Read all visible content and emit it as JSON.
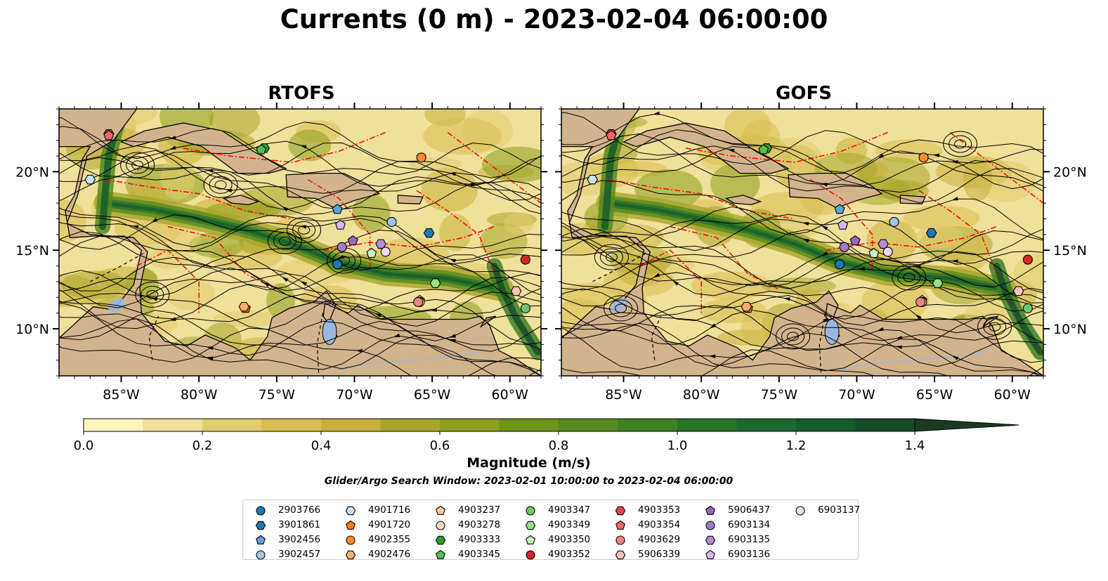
{
  "title": "Currents (0 m) - 2023-02-04 06:00:00",
  "panels": [
    {
      "name": "RTOFS"
    },
    {
      "name": "GOFS"
    }
  ],
  "colors": {
    "land": "#d2b48c",
    "lakes": "#9ab8dd",
    "eez_lines": "#ff0000",
    "streamlines": "#000000"
  },
  "chart_data": {
    "type": "heatmap",
    "variable": "surface current magnitude with streamlines",
    "depth_m": 0,
    "longitude_axis": {
      "range": [
        -89,
        -58
      ],
      "ticks": [
        -85,
        -80,
        -75,
        -70,
        -65,
        -60
      ],
      "tick_labels": [
        "85°W",
        "80°W",
        "75°W",
        "70°W",
        "65°W",
        "60°W"
      ]
    },
    "latitude_axis": {
      "range": [
        7,
        24
      ],
      "ticks": [
        10,
        15,
        20
      ],
      "tick_labels": [
        "10°N",
        "15°N",
        "20°N"
      ]
    },
    "colorbar": {
      "label": "Magnitude (m/s)",
      "levels": [
        0.0,
        0.1,
        0.2,
        0.3,
        0.4,
        0.5,
        0.6,
        0.7,
        0.8,
        0.9,
        1.0,
        1.1,
        1.2,
        1.3,
        1.4,
        1.5
      ],
      "colors": [
        "#fdf6bf",
        "#efe09a",
        "#e2cc70",
        "#d8bd50",
        "#c8b03a",
        "#a8a52a",
        "#8d9e1e",
        "#719418",
        "#588a1f",
        "#3e7f24",
        "#2a7428",
        "#1b6a2e",
        "#155d2c",
        "#174c2a",
        "#1a3b22"
      ],
      "tick_labels": [
        "0.0",
        "0.2",
        "0.4",
        "0.6",
        "0.8",
        "1.0",
        "1.2",
        "1.4"
      ],
      "extend": "max"
    },
    "search_window": "Glider/Argo Search Window: 2023-02-01 10:00:00 to 2023-02-04 06:00:00",
    "floats": [
      {
        "id": "2903766",
        "marker": "circle",
        "color": "#1f77b4",
        "lon": -71.1,
        "lat": 14.1
      },
      {
        "id": "3901861",
        "marker": "hexagon",
        "color": "#1f77b4",
        "lon": -65.2,
        "lat": 16.1
      },
      {
        "id": "3902456",
        "marker": "pentagon",
        "color": "#5fa2dd",
        "lon": -71.1,
        "lat": 17.6
      },
      {
        "id": "3902457",
        "marker": "circle",
        "color": "#9ec6ea",
        "lon": -67.6,
        "lat": 16.8
      },
      {
        "id": "4901716",
        "marker": "hexagon",
        "color": "#c6e2f5",
        "lon": -87.0,
        "lat": 19.5
      },
      {
        "id": "4901720",
        "marker": "pentagon",
        "color": "#ff7f0e",
        "lon": -77.0,
        "lat": 11.3
      },
      {
        "id": "4902355",
        "marker": "circle",
        "color": "#ff8c2a",
        "lon": -65.7,
        "lat": 20.9
      },
      {
        "id": "4902476",
        "marker": "hexagon",
        "color": "#ffae6a",
        "lon": -77.1,
        "lat": 11.4
      },
      {
        "id": "4903237",
        "marker": "pentagon",
        "color": "#ffc994",
        "lon": -65.8,
        "lat": 11.8
      },
      {
        "id": "4903278",
        "marker": "circle",
        "color": "#ffdfc2",
        "lon": -65.8,
        "lat": 11.7
      },
      {
        "id": "4903333",
        "marker": "hexagon",
        "color": "#2ca02c",
        "lon": -75.8,
        "lat": 21.5
      },
      {
        "id": "4903345",
        "marker": "pentagon",
        "color": "#56c04e",
        "lon": -76.0,
        "lat": 21.4
      },
      {
        "id": "4903347",
        "marker": "circle",
        "color": "#6cc76c",
        "lon": -59.0,
        "lat": 11.3
      },
      {
        "id": "4903349",
        "marker": "hexagon",
        "color": "#98df8a",
        "lon": -64.8,
        "lat": 12.9
      },
      {
        "id": "4903350",
        "marker": "pentagon",
        "color": "#c8f0c0",
        "lon": -68.9,
        "lat": 14.8
      },
      {
        "id": "4903352",
        "marker": "circle",
        "color": "#d62728",
        "lon": -59.0,
        "lat": 14.4
      },
      {
        "id": "4903353",
        "marker": "hexagon",
        "color": "#e0474a",
        "lon": -85.8,
        "lat": 22.4
      },
      {
        "id": "4903354",
        "marker": "pentagon",
        "color": "#f06868",
        "lon": -85.8,
        "lat": 22.3
      },
      {
        "id": "4903629",
        "marker": "circle",
        "color": "#f08484",
        "lon": -65.9,
        "lat": 11.7
      },
      {
        "id": "5906339",
        "marker": "hexagon",
        "color": "#ffc0c0",
        "lon": -59.6,
        "lat": 12.4
      },
      {
        "id": "5906437",
        "marker": "pentagon",
        "color": "#9467bd",
        "lon": -70.1,
        "lat": 15.6
      },
      {
        "id": "6903134",
        "marker": "circle",
        "color": "#a07cc8",
        "lon": -70.8,
        "lat": 15.2
      },
      {
        "id": "6903135",
        "marker": "hexagon",
        "color": "#b48cd6",
        "lon": -68.3,
        "lat": 15.4
      },
      {
        "id": "6903136",
        "marker": "pentagon",
        "color": "#d6b8ee",
        "lon": -70.9,
        "lat": 16.6
      },
      {
        "id": "6903137",
        "marker": "circle",
        "color": "#efd8fb",
        "lon": -68.0,
        "lat": 14.9
      }
    ]
  }
}
